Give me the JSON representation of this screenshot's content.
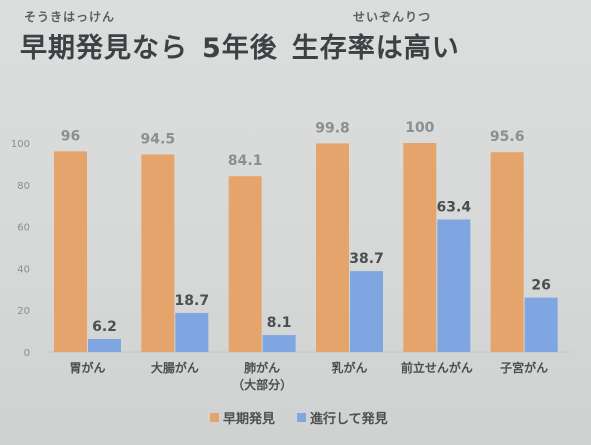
{
  "header": {
    "ruby1": "そうきはっけん",
    "ruby2": "せいぞんりつ",
    "title_part1": "早期発見なら",
    "title_part2": "5年後",
    "title_part3": "生存率は高い"
  },
  "colors": {
    "early": "#e4a46c",
    "advanced": "#7fa6e0",
    "label": "#4a4f52",
    "grid": "#c3c6c5"
  },
  "chart_data": {
    "type": "bar",
    "categories": [
      "胃がん",
      "大腸がん",
      "肺がん\n（大部分）",
      "乳がん",
      "前立せんがん",
      "子宮がん"
    ],
    "series": [
      {
        "name": "早期発見",
        "values": [
          96,
          94.5,
          84.1,
          99.8,
          100,
          95.6
        ]
      },
      {
        "name": "進行して発見",
        "values": [
          6.2,
          18.7,
          8.1,
          38.7,
          63.4,
          26
        ]
      }
    ],
    "yticks": [
      0,
      20,
      40,
      60,
      80,
      100
    ],
    "ylim": [
      0,
      100
    ],
    "grid": false,
    "legend": "bottom"
  },
  "value_labels": {
    "early": [
      "96",
      "94.5",
      "84.1",
      "99.8",
      "100",
      "95.6"
    ],
    "advanced": [
      "6.2",
      "18.7",
      "8.1",
      "38.7",
      "63.4",
      "26"
    ]
  },
  "legend": {
    "early": "早期発見",
    "advanced": "進行して発見"
  }
}
